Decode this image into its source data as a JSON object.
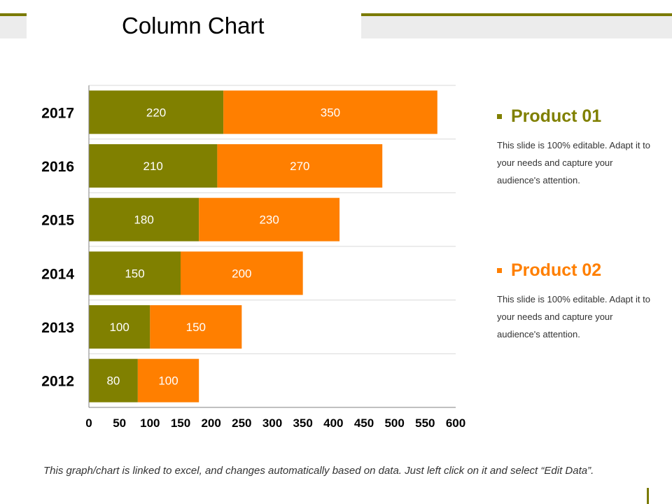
{
  "title": "Column Chart",
  "colors": {
    "product01": "#808000",
    "product02": "#ff7f00",
    "accent": "#7a7a00"
  },
  "chart_data": {
    "type": "bar",
    "orientation": "horizontal",
    "stacked": true,
    "categories": [
      "2017",
      "2016",
      "2015",
      "2014",
      "2013",
      "2012"
    ],
    "series": [
      {
        "name": "Product 01",
        "values": [
          220,
          210,
          180,
          150,
          100,
          80
        ]
      },
      {
        "name": "Product 02",
        "values": [
          350,
          270,
          230,
          200,
          150,
          100
        ]
      }
    ],
    "xlim": [
      0,
      600
    ],
    "xticks": [
      0,
      50,
      100,
      150,
      200,
      250,
      300,
      350,
      400,
      450,
      500,
      550,
      600
    ],
    "grid": true,
    "data_labels": true,
    "legend_placement": "right"
  },
  "legend": [
    {
      "label": "Product 01",
      "description": "This slide is 100% editable. Adapt it to your needs and capture your audience's attention."
    },
    {
      "label": "Product 02",
      "description": "This slide is 100% editable. Adapt it to your needs and capture your audience's attention."
    }
  ],
  "footnote": "This graph/chart is linked to excel, and changes automatically based on data. Just left click on it and select “Edit Data”."
}
